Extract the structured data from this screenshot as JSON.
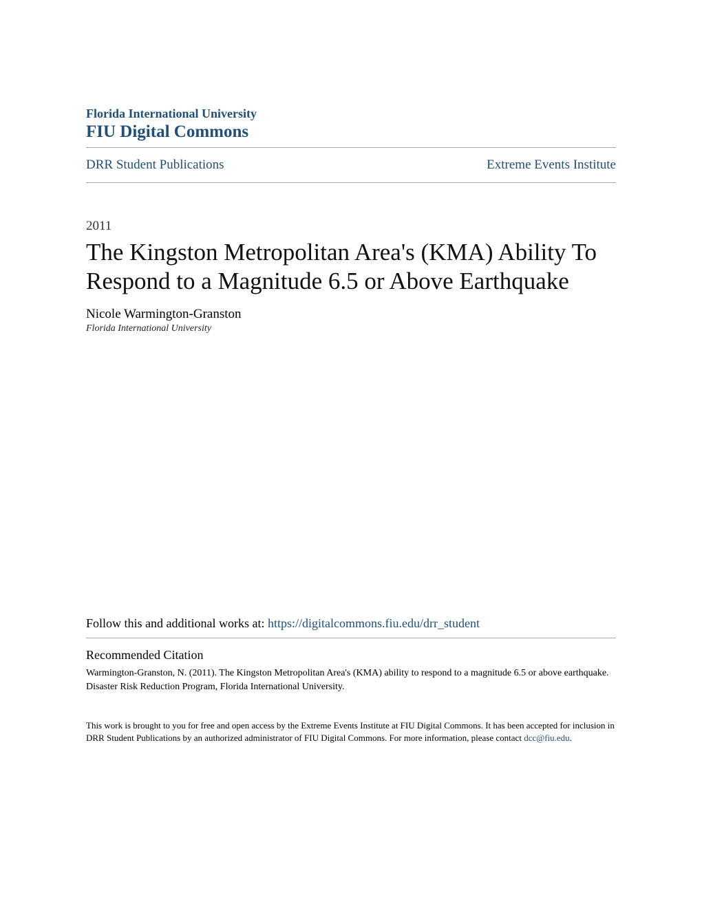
{
  "header": {
    "university": "Florida International University",
    "commons": "FIU Digital Commons"
  },
  "breadcrumb": {
    "left": "DRR Student Publications",
    "right": "Extreme Events Institute"
  },
  "publication": {
    "year": "2011",
    "title": "The Kingston Metropolitan Area's (KMA) Ability To Respond to a Magnitude 6.5 or Above Earthquake",
    "author": "Nicole Warmington-Granston",
    "affiliation": "Florida International University"
  },
  "follow": {
    "prefix": "Follow this and additional works at: ",
    "url": "https://digitalcommons.fiu.edu/drr_student"
  },
  "citation": {
    "heading": "Recommended Citation",
    "text": "Warmington-Granston, N. (2011). The Kingston Metropolitan Area's (KMA) ability to respond to a magnitude 6.5 or above earthquake. Disaster Risk Reduction Program, Florida International University."
  },
  "footer": {
    "text": "This work is brought to you for free and open access by the Extreme Events Institute at FIU Digital Commons. It has been accepted for inclusion in DRR Student Publications by an authorized administrator of FIU Digital Commons. For more information, please contact ",
    "email": "dcc@fiu.edu",
    "suffix": "."
  },
  "colors": {
    "link": "#1f4e79",
    "divider": "#aaaaaa",
    "background": "#ffffff"
  }
}
